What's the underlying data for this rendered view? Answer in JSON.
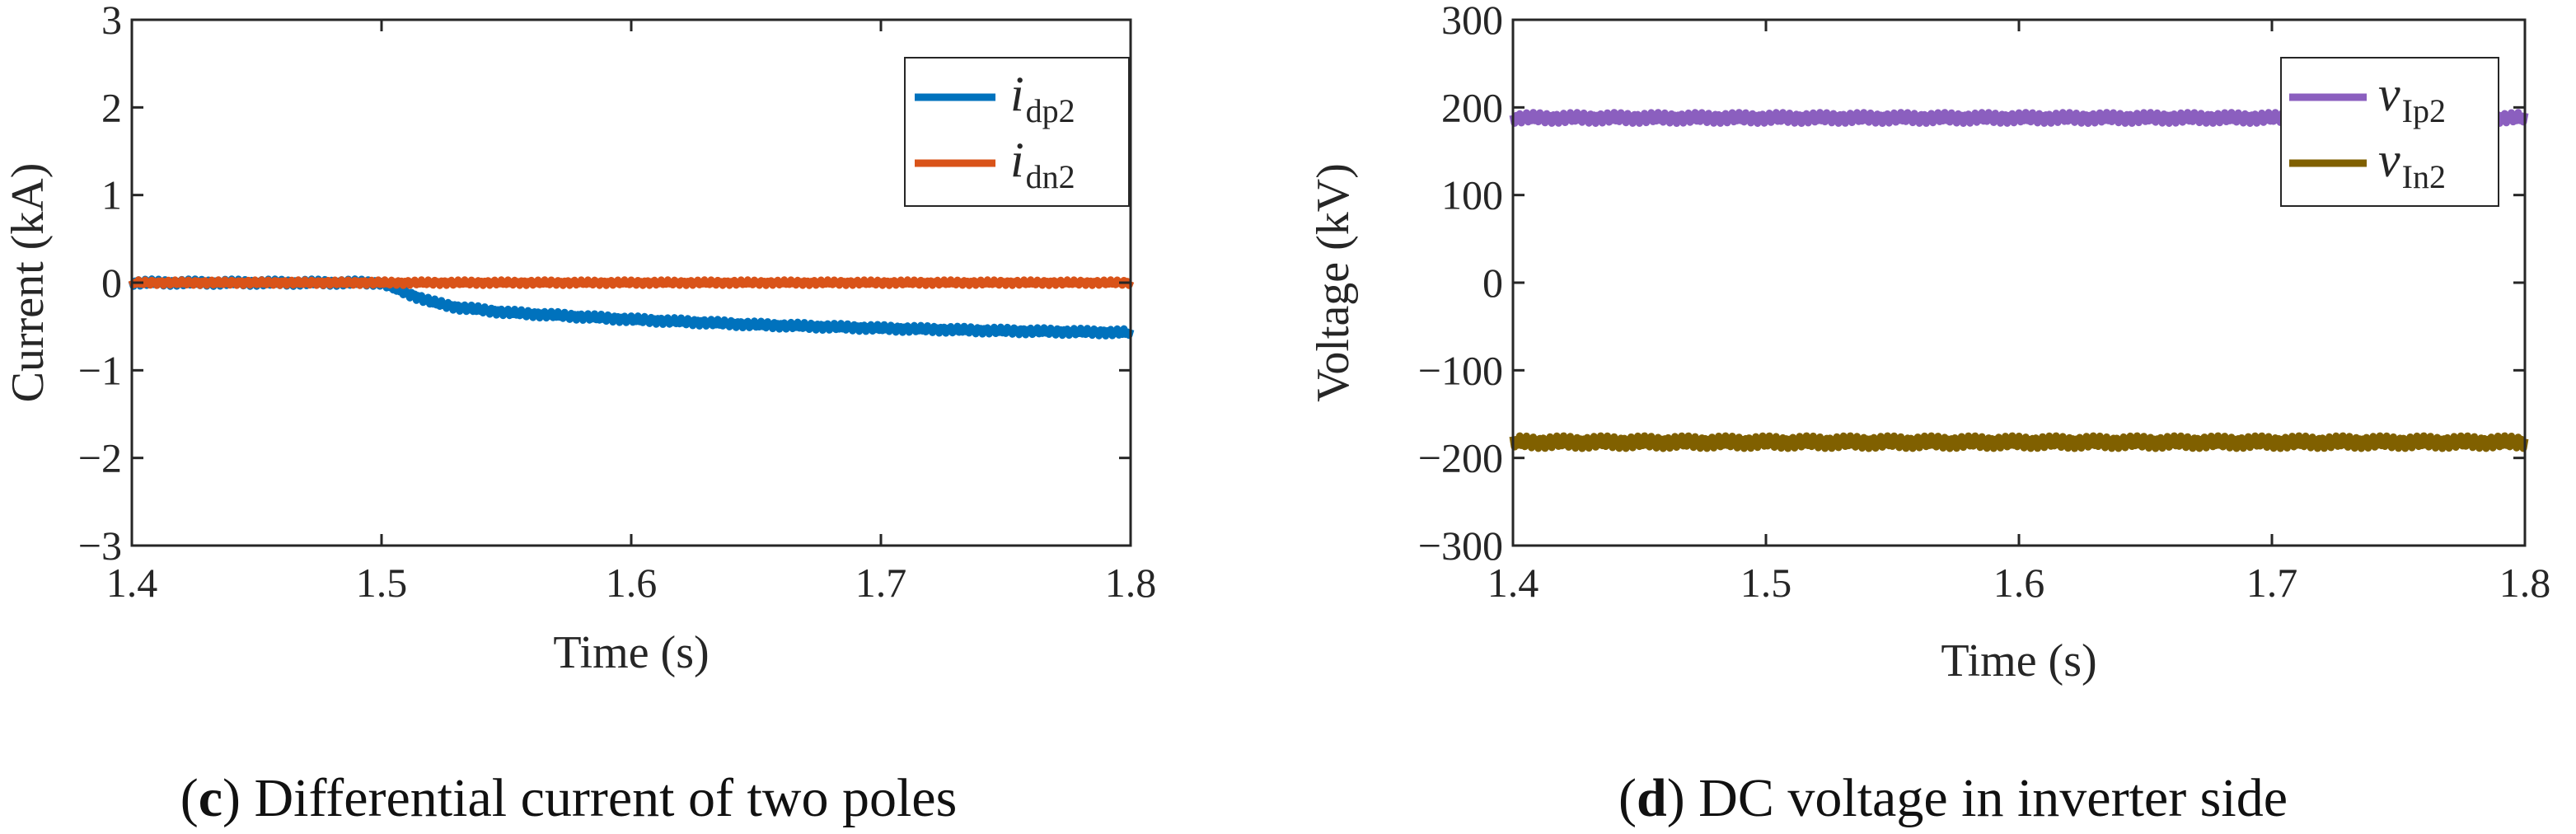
{
  "chart_data": [
    {
      "type": "line",
      "panel_letter": "c",
      "caption": "Differential current of two poles",
      "xlabel": "Time (s)",
      "ylabel": "Current (kA)",
      "xlim": [
        1.4,
        1.8
      ],
      "ylim": [
        -3,
        3
      ],
      "xticks": [
        "1.4",
        "1.5",
        "1.6",
        "1.7",
        "1.8"
      ],
      "yticks": [
        "−3",
        "−2",
        "−1",
        "0",
        "1",
        "2",
        "3"
      ],
      "grid": false,
      "legend_position": "top-right",
      "series": [
        {
          "name": "i",
          "subscript": "dp2",
          "color": "#0072BD",
          "ripple": 0.04,
          "x": [
            1.4,
            1.5,
            1.51,
            1.52,
            1.53,
            1.55,
            1.6,
            1.65,
            1.7,
            1.75,
            1.8
          ],
          "y": [
            0,
            0,
            -0.12,
            -0.22,
            -0.28,
            -0.34,
            -0.42,
            -0.48,
            -0.52,
            -0.55,
            -0.57
          ]
        },
        {
          "name": "i",
          "subscript": "dn2",
          "color": "#D95319",
          "ripple": 0.03,
          "x": [
            1.4,
            1.8
          ],
          "y": [
            0,
            0
          ]
        }
      ]
    },
    {
      "type": "line",
      "panel_letter": "d",
      "caption": "DC voltage in inverter side",
      "xlabel": "Time (s)",
      "ylabel": "Voltage (kV)",
      "xlim": [
        1.4,
        1.8
      ],
      "ylim": [
        -300,
        300
      ],
      "xticks": [
        "1.4",
        "1.5",
        "1.6",
        "1.7",
        "1.8"
      ],
      "yticks": [
        "−300",
        "−200",
        "−100",
        "0",
        "100",
        "200",
        "300"
      ],
      "grid": false,
      "legend_position": "top-right",
      "series": [
        {
          "name": "v",
          "subscript": "Ip2",
          "color": "#8B5FBF",
          "ripple": 6,
          "x": [
            1.4,
            1.8
          ],
          "y": [
            188,
            188
          ]
        },
        {
          "name": "v",
          "subscript": "In2",
          "color": "#806000",
          "ripple": 7,
          "x": [
            1.4,
            1.8
          ],
          "y": [
            -182,
            -182
          ]
        }
      ]
    }
  ]
}
